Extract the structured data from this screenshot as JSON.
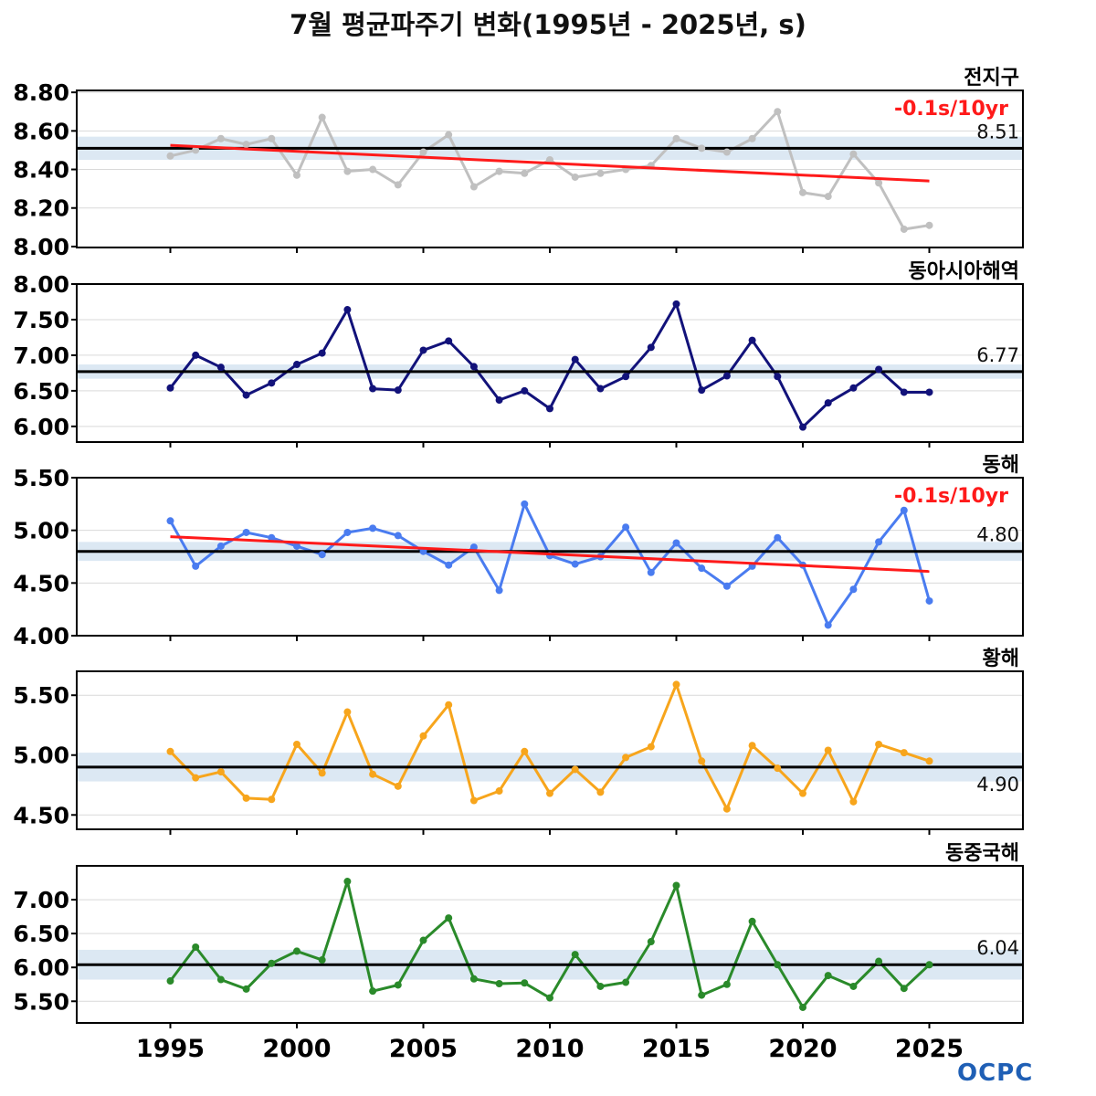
{
  "title": "7월 평균파주기 변화(1995년 - 2025년, s)",
  "logo_text": "OCPC",
  "colors": {
    "mean_line": "#000000",
    "mean_band": "#dce8f3",
    "trend": "#ff1a1a",
    "grid": "#d9d9d9"
  },
  "chart_data": [
    {
      "type": "line",
      "region": "전지구",
      "color": "#c0c0c0",
      "mean": 8.51,
      "mean_label": "8.51",
      "band": [
        8.45,
        8.57
      ],
      "trend": {
        "start": 8.525,
        "end": 8.34,
        "label": "-0.1s/10yr"
      },
      "ylim": [
        7.995,
        8.81
      ],
      "yticks": [
        8.0,
        8.2,
        8.4,
        8.6,
        8.8
      ],
      "ytick_labels": [
        "8.00",
        "8.20",
        "8.40",
        "8.60",
        "8.80"
      ],
      "x": [
        1995,
        1996,
        1997,
        1998,
        1999,
        2000,
        2001,
        2002,
        2003,
        2004,
        2005,
        2006,
        2007,
        2008,
        2009,
        2010,
        2011,
        2012,
        2013,
        2014,
        2015,
        2016,
        2017,
        2018,
        2019,
        2020,
        2021,
        2022,
        2023,
        2024,
        2025
      ],
      "values": [
        8.47,
        8.5,
        8.56,
        8.53,
        8.56,
        8.37,
        8.67,
        8.39,
        8.4,
        8.32,
        8.49,
        8.58,
        8.31,
        8.39,
        8.38,
        8.45,
        8.36,
        8.38,
        8.4,
        8.42,
        8.56,
        8.51,
        8.49,
        8.56,
        8.7,
        8.28,
        8.26,
        8.48,
        8.33,
        8.09,
        8.11
      ]
    },
    {
      "type": "line",
      "region": "동아시아해역",
      "color": "#12127a",
      "mean": 6.77,
      "mean_label": "6.77",
      "band": [
        6.67,
        6.87
      ],
      "trend": null,
      "ylim": [
        5.78,
        8.0
      ],
      "yticks": [
        6.0,
        6.5,
        7.0,
        7.5,
        8.0
      ],
      "ytick_labels": [
        "6.00",
        "6.50",
        "7.00",
        "7.50",
        "8.00"
      ],
      "x": [
        1995,
        1996,
        1997,
        1998,
        1999,
        2000,
        2001,
        2002,
        2003,
        2004,
        2005,
        2006,
        2007,
        2008,
        2009,
        2010,
        2011,
        2012,
        2013,
        2014,
        2015,
        2016,
        2017,
        2018,
        2019,
        2020,
        2021,
        2022,
        2023,
        2024,
        2025
      ],
      "values": [
        6.54,
        7.0,
        6.83,
        6.44,
        6.61,
        6.87,
        7.03,
        7.64,
        6.53,
        6.51,
        7.07,
        7.2,
        6.84,
        6.37,
        6.5,
        6.25,
        6.94,
        6.53,
        6.7,
        7.11,
        7.72,
        6.51,
        6.71,
        7.21,
        6.7,
        5.99,
        6.33,
        6.54,
        6.8,
        6.48,
        6.48
      ]
    },
    {
      "type": "line",
      "region": "동해",
      "color": "#4a7cf0",
      "mean": 4.8,
      "mean_label": "4.80",
      "band": [
        4.71,
        4.89
      ],
      "trend": {
        "start": 4.94,
        "end": 4.61,
        "label": "-0.1s/10yr"
      },
      "ylim": [
        4.0,
        5.5
      ],
      "yticks": [
        4.0,
        4.5,
        5.0,
        5.5
      ],
      "ytick_labels": [
        "4.00",
        "4.50",
        "5.00",
        "5.50"
      ],
      "x": [
        1995,
        1996,
        1997,
        1998,
        1999,
        2000,
        2001,
        2002,
        2003,
        2004,
        2005,
        2006,
        2007,
        2008,
        2009,
        2010,
        2011,
        2012,
        2013,
        2014,
        2015,
        2016,
        2017,
        2018,
        2019,
        2020,
        2021,
        2022,
        2023,
        2024,
        2025
      ],
      "values": [
        5.09,
        4.66,
        4.85,
        4.98,
        4.93,
        4.85,
        4.77,
        4.98,
        5.02,
        4.95,
        4.8,
        4.67,
        4.84,
        4.43,
        5.25,
        4.76,
        4.68,
        4.75,
        5.03,
        4.6,
        4.88,
        4.64,
        4.47,
        4.66,
        4.93,
        4.67,
        4.1,
        4.44,
        4.89,
        5.19,
        4.33
      ]
    },
    {
      "type": "line",
      "region": "황해",
      "color": "#f7a51c",
      "mean": 4.9,
      "mean_label": "4.90",
      "band": [
        4.78,
        5.02
      ],
      "trend": null,
      "ylim": [
        4.38,
        5.7
      ],
      "yticks": [
        4.5,
        5.0,
        5.5
      ],
      "ytick_labels": [
        "4.50",
        "5.00",
        "5.50"
      ],
      "x": [
        1995,
        1996,
        1997,
        1998,
        1999,
        2000,
        2001,
        2002,
        2003,
        2004,
        2005,
        2006,
        2007,
        2008,
        2009,
        2010,
        2011,
        2012,
        2013,
        2014,
        2015,
        2016,
        2017,
        2018,
        2019,
        2020,
        2021,
        2022,
        2023,
        2024,
        2025
      ],
      "values": [
        5.03,
        4.81,
        4.86,
        4.64,
        4.63,
        5.09,
        4.85,
        5.36,
        4.84,
        4.74,
        5.16,
        5.42,
        4.62,
        4.7,
        5.03,
        4.68,
        4.88,
        4.69,
        4.98,
        5.07,
        5.59,
        4.95,
        4.55,
        5.08,
        4.89,
        4.68,
        5.04,
        4.61,
        5.09,
        5.02,
        4.95
      ]
    },
    {
      "type": "line",
      "region": "동중국해",
      "color": "#2a8a2a",
      "mean": 6.04,
      "mean_label": "6.04",
      "band": [
        5.82,
        6.26
      ],
      "trend": null,
      "ylim": [
        5.18,
        7.5
      ],
      "yticks": [
        5.5,
        6.0,
        6.5,
        7.0
      ],
      "ytick_labels": [
        "5.50",
        "6.00",
        "6.50",
        "7.00"
      ],
      "x": [
        1995,
        1996,
        1997,
        1998,
        1999,
        2000,
        2001,
        2002,
        2003,
        2004,
        2005,
        2006,
        2007,
        2008,
        2009,
        2010,
        2011,
        2012,
        2013,
        2014,
        2015,
        2016,
        2017,
        2018,
        2019,
        2020,
        2021,
        2022,
        2023,
        2024,
        2025
      ],
      "values": [
        5.8,
        6.3,
        5.82,
        5.68,
        6.06,
        6.24,
        6.11,
        7.27,
        5.65,
        5.74,
        6.4,
        6.73,
        5.83,
        5.76,
        5.77,
        5.55,
        6.19,
        5.72,
        5.78,
        6.38,
        7.21,
        5.59,
        5.75,
        6.68,
        6.04,
        5.41,
        5.88,
        5.72,
        6.09,
        5.69,
        6.04
      ]
    }
  ],
  "xaxis": {
    "ticks": [
      1995,
      2000,
      2005,
      2010,
      2015,
      2020,
      2025
    ],
    "tick_labels": [
      "1995",
      "2000",
      "2005",
      "2010",
      "2015",
      "2020",
      "2025"
    ],
    "range": [
      1991.3,
      2028.7
    ]
  }
}
